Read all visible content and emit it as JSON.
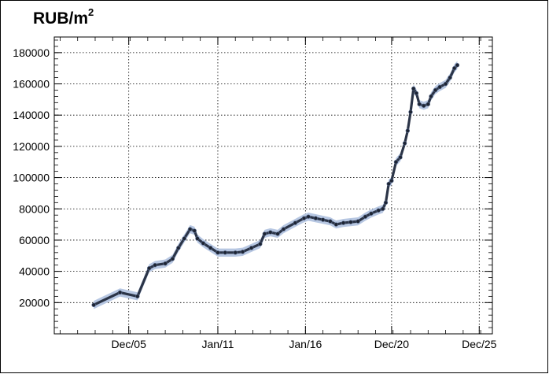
{
  "chart_data": {
    "type": "line",
    "title": "RUB/m",
    "title_sup": "2",
    "xlabel": "",
    "ylabel": "",
    "ylim": [
      0,
      190000
    ],
    "xlim": [
      "2001-09",
      "2026-09"
    ],
    "yticks": [
      20000,
      40000,
      60000,
      80000,
      100000,
      120000,
      140000,
      160000,
      180000
    ],
    "xticks": [
      {
        "label": "Dec/05",
        "date": "2005-12"
      },
      {
        "label": "Jan/11",
        "date": "2011-01"
      },
      {
        "label": "Jan/16",
        "date": "2016-01"
      },
      {
        "label": "Dec/20",
        "date": "2020-12"
      },
      {
        "label": "Dec/25",
        "date": "2025-12"
      }
    ],
    "grid": true,
    "band_color": "#b7c7e2",
    "point_color": "#1d2433",
    "series": [
      {
        "points": [
          [
            "2003-12",
            18500
          ],
          [
            "2005-06",
            26500
          ],
          [
            "2006-06",
            24000
          ],
          [
            "2007-02",
            42000
          ],
          [
            "2007-06",
            44000
          ],
          [
            "2008-01",
            45000
          ],
          [
            "2008-06",
            48000
          ],
          [
            "2008-10",
            55000
          ],
          [
            "2009-02",
            61000
          ],
          [
            "2009-06",
            67000
          ],
          [
            "2009-09",
            66000
          ],
          [
            "2009-11",
            61000
          ],
          [
            "2010-03",
            58000
          ],
          [
            "2010-08",
            55000
          ],
          [
            "2011-01",
            52000
          ],
          [
            "2011-06",
            52000
          ],
          [
            "2012-01",
            52000
          ],
          [
            "2012-06",
            52500
          ],
          [
            "2012-12",
            55000
          ],
          [
            "2013-06",
            57500
          ],
          [
            "2013-09",
            64000
          ],
          [
            "2014-01",
            65000
          ],
          [
            "2014-06",
            64000
          ],
          [
            "2014-10",
            67000
          ],
          [
            "2015-06",
            71000
          ],
          [
            "2015-12",
            74000
          ],
          [
            "2016-03",
            75000
          ],
          [
            "2016-08",
            74000
          ],
          [
            "2017-01",
            73000
          ],
          [
            "2017-06",
            72000
          ],
          [
            "2017-10",
            70000
          ],
          [
            "2018-03",
            71000
          ],
          [
            "2018-08",
            71500
          ],
          [
            "2019-01",
            72000
          ],
          [
            "2019-06",
            75000
          ],
          [
            "2019-10",
            77000
          ],
          [
            "2020-03",
            79000
          ],
          [
            "2020-06",
            80000
          ],
          [
            "2020-08",
            84000
          ],
          [
            "2020-10",
            96000
          ],
          [
            "2020-12",
            98000
          ],
          [
            "2021-03",
            110000
          ],
          [
            "2021-06",
            113000
          ],
          [
            "2021-09",
            122000
          ],
          [
            "2021-11",
            130000
          ],
          [
            "2022-01",
            142000
          ],
          [
            "2022-03",
            157000
          ],
          [
            "2022-05",
            154000
          ],
          [
            "2022-07",
            147000
          ],
          [
            "2022-10",
            146000
          ],
          [
            "2023-01",
            147000
          ],
          [
            "2023-03",
            152000
          ],
          [
            "2023-06",
            156000
          ],
          [
            "2023-09",
            158000
          ],
          [
            "2024-01",
            160000
          ],
          [
            "2024-04",
            164000
          ],
          [
            "2024-07",
            170000
          ],
          [
            "2024-09",
            172000
          ]
        ]
      }
    ]
  }
}
